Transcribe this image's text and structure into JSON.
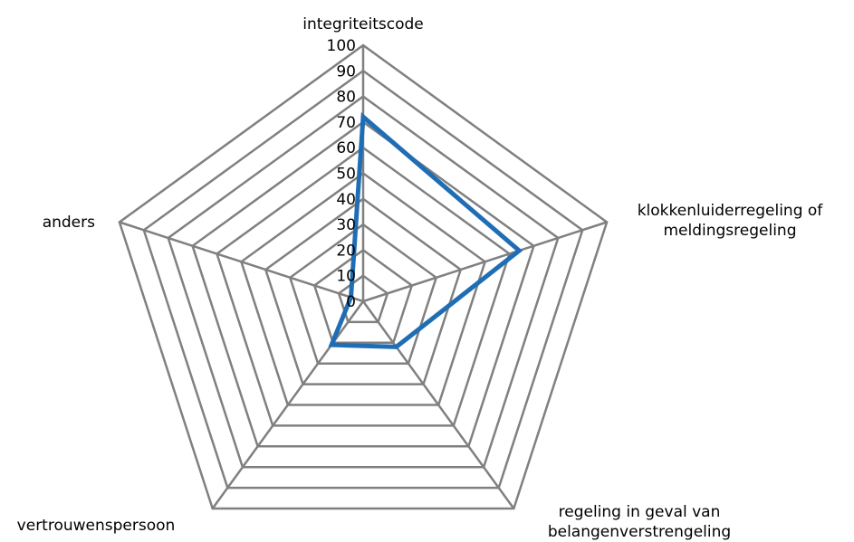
{
  "chart_data": {
    "type": "radar",
    "categories": [
      "integriteitscode",
      "klokkenluiderregeling of meldingsregeling",
      "regeling in geval van belangenverstrengeling",
      "vertrouwenspersoon",
      "anders"
    ],
    "category_lines": [
      [
        "integriteitscode"
      ],
      [
        "klokkenluiderregeling of",
        "meldingsregeling"
      ],
      [
        "regeling in geval van",
        "belangenverstrengeling"
      ],
      [
        "vertrouwenspersoon"
      ],
      [
        "anders"
      ]
    ],
    "values": [
      72,
      64,
      22,
      21,
      5
    ],
    "rlim": [
      0,
      100
    ],
    "ticks": [
      "0",
      "10",
      "20",
      "30",
      "40",
      "50",
      "60",
      "70",
      "80",
      "90",
      "100"
    ],
    "grid": true,
    "grid_color": "#808080",
    "series_color": "#1f6eb5",
    "legend": "none"
  }
}
